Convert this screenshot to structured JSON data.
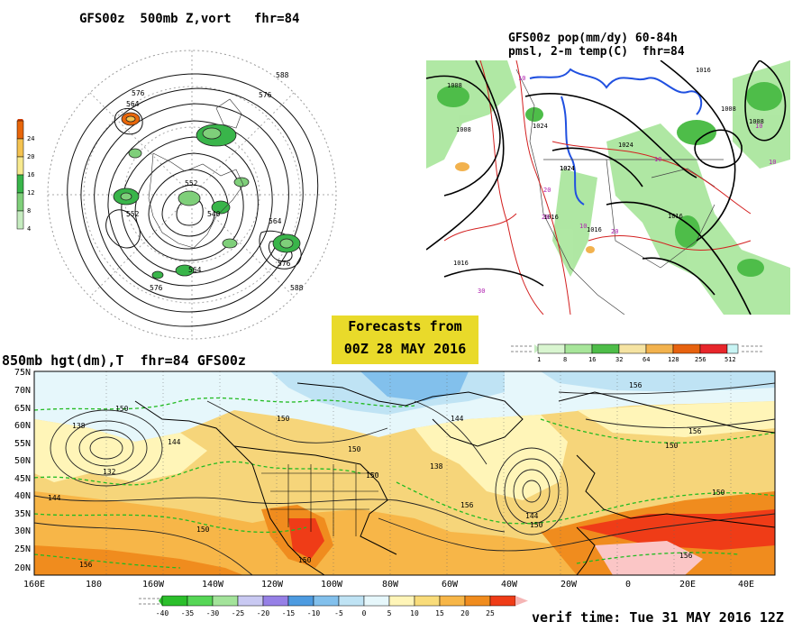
{
  "panels": {
    "top_left": {
      "title": "GFS00z  500mb Z,vort   fhr=84",
      "colorbar_labels": [
        "24",
        "20",
        "16",
        "12",
        "8",
        "4"
      ],
      "colorbar_colors": [
        "#e8660a",
        "#f4c250",
        "#f7e98e",
        "#39b54a",
        "#7fcf7a",
        "#c6ecc0"
      ],
      "contour_labels": [
        "576",
        "564",
        "588",
        "552",
        "540",
        "576",
        "564",
        "552",
        "564",
        "576",
        "588",
        "576"
      ]
    },
    "top_right": {
      "title_line1": "GFS00z pop(mm/dy) 60-84h",
      "title_line2": "pmsl, 2-m temp(C)  fhr=84",
      "colorbar_labels": [
        "1",
        "8",
        "16",
        "32",
        "64",
        "128",
        "256",
        "512"
      ],
      "colorbar_colors": [
        "#d9f5d0",
        "#a7e59a",
        "#4ebd49",
        "#f5e3a2",
        "#f2b24e",
        "#e7620f",
        "#e7262b",
        "#c8f4f4"
      ],
      "isobar_labels": [
        "1008",
        "1008",
        "1024",
        "1024",
        "1024",
        "1016",
        "1008",
        "1016",
        "1016",
        "1016",
        "1008",
        "1016",
        "1024"
      ],
      "temp_labels": [
        "10",
        "10",
        "10",
        "20",
        "20",
        "30",
        "20",
        "10",
        "10"
      ]
    },
    "banner": {
      "line1": "Forecasts from",
      "line2": "00Z 28 MAY 2016"
    },
    "bottom": {
      "title": "850mb hgt(dm),T  fhr=84 GFS00z",
      "lat_labels": [
        "75N",
        "70N",
        "65N",
        "60N",
        "55N",
        "50N",
        "45N",
        "40N",
        "35N",
        "30N",
        "25N",
        "20N"
      ],
      "lon_labels": [
        "160E",
        "180",
        "160W",
        "140W",
        "120W",
        "100W",
        "80W",
        "60W",
        "40W",
        "20W",
        "0",
        "20E",
        "40E"
      ],
      "height_labels": [
        "150",
        "138",
        "132",
        "144",
        "150",
        "144",
        "150",
        "138",
        "156",
        "144",
        "150",
        "156",
        "150",
        "156",
        "150",
        "144",
        "150",
        "156",
        "156",
        "150",
        "150"
      ],
      "temp_scale_labels": [
        "-40",
        "-35",
        "-30",
        "-25",
        "-20",
        "-15",
        "-10",
        "-5",
        "0",
        "5",
        "10",
        "15",
        "20",
        "25"
      ],
      "temp_scale_colors": [
        "#2bbf2b",
        "#56d656",
        "#a3e39a",
        "#c9c9f2",
        "#9680e6",
        "#4d9be0",
        "#82c0ec",
        "#bfe3f4",
        "#e6f7fb",
        "#fff5b8",
        "#f9dc7a",
        "#f7b648",
        "#f08c1e",
        "#ef3c17"
      ],
      "verif_time": "verif time: Tue 31 MAY 2016 12Z"
    }
  }
}
